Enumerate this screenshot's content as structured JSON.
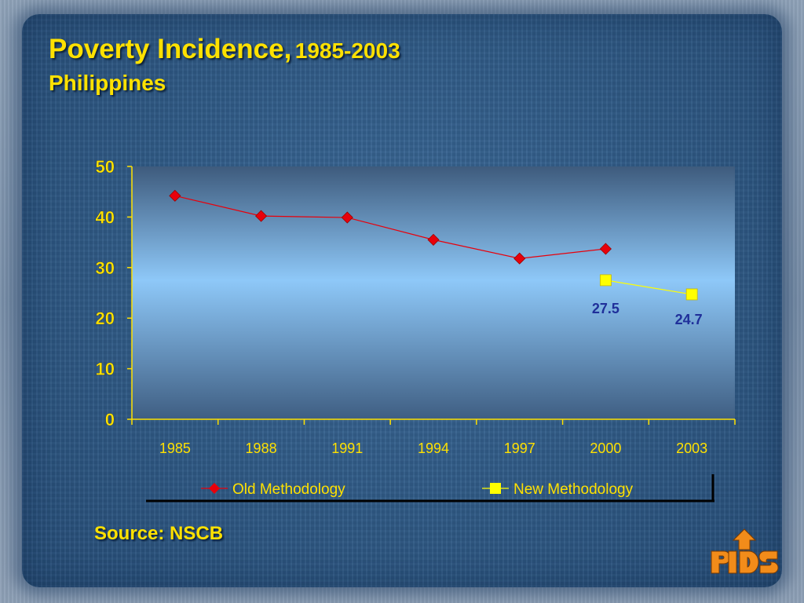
{
  "slide": {
    "title": "Poverty Incidence,",
    "title_range": "1985-2003",
    "subtitle": "Philippines",
    "source": "Source: NSCB",
    "logo_text": "PIDS"
  },
  "colors": {
    "title_yellow": "#ffe100",
    "old_series": "#e8000b",
    "new_series": "#ffff00",
    "label_blue": "#1f2f9a",
    "panel_blue": "#2f5a86"
  },
  "chart_data": {
    "type": "line",
    "title": "",
    "xlabel": "",
    "ylabel": "",
    "categories": [
      "1985",
      "1988",
      "1991",
      "1994",
      "1997",
      "2000",
      "2003"
    ],
    "ylim": [
      0,
      50
    ],
    "yticks": [
      0,
      10,
      20,
      30,
      40,
      50
    ],
    "grid": false,
    "legend_position": "bottom",
    "series": [
      {
        "name": "Old Methodology",
        "marker": "diamond",
        "color": "#e8000b",
        "values": [
          44.2,
          40.2,
          39.9,
          35.5,
          31.8,
          33.7,
          null
        ]
      },
      {
        "name": "New Methodology",
        "marker": "square",
        "color": "#ffff00",
        "values": [
          null,
          null,
          null,
          null,
          null,
          27.5,
          24.7
        ],
        "data_labels": [
          null,
          null,
          null,
          null,
          null,
          "27.5",
          "24.7"
        ]
      }
    ]
  }
}
